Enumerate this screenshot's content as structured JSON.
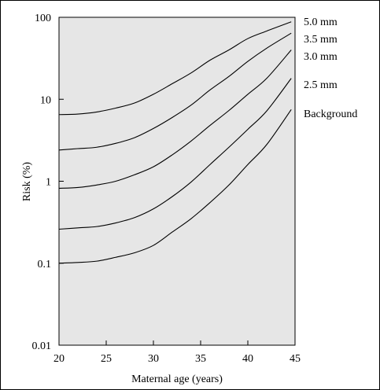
{
  "chart_data": {
    "type": "line",
    "title": "",
    "xlabel": "Maternal age (years)",
    "ylabel": "Risk (%)",
    "xlim": [
      20,
      45
    ],
    "ylim": [
      0.01,
      100
    ],
    "yscale": "log",
    "grid": false,
    "plot_background": "#e6e6e6",
    "line_color": "#000000",
    "x_ticks": [
      {
        "value": 20,
        "label": "20"
      },
      {
        "value": 25,
        "label": "25"
      },
      {
        "value": 30,
        "label": "30"
      },
      {
        "value": 35,
        "label": "35"
      },
      {
        "value": 40,
        "label": "40"
      },
      {
        "value": 45,
        "label": "45"
      }
    ],
    "y_ticks": [
      {
        "value": 0.01,
        "label": "0.01"
      },
      {
        "value": 0.1,
        "label": "0.1"
      },
      {
        "value": 1,
        "label": "1"
      },
      {
        "value": 10,
        "label": "10"
      },
      {
        "value": 100,
        "label": "100"
      }
    ],
    "x": [
      20,
      22,
      24,
      26,
      28,
      30,
      32,
      34,
      36,
      38,
      40,
      42,
      44.6
    ],
    "series": [
      {
        "name": "5.0 mm",
        "values": [
          6.5,
          6.6,
          7.0,
          7.8,
          9.0,
          11.5,
          15.5,
          21,
          30,
          40,
          55,
          68,
          88
        ]
      },
      {
        "name": "3.5 mm",
        "values": [
          2.4,
          2.5,
          2.6,
          2.9,
          3.4,
          4.4,
          6.0,
          8.5,
          13,
          19,
          29,
          42,
          64
        ]
      },
      {
        "name": "3.0 mm",
        "values": [
          0.82,
          0.84,
          0.9,
          1.0,
          1.2,
          1.5,
          2.1,
          3.1,
          4.8,
          7.3,
          11.5,
          18,
          40
        ]
      },
      {
        "name": "2.5 mm",
        "values": [
          0.26,
          0.27,
          0.28,
          0.31,
          0.36,
          0.46,
          0.65,
          0.98,
          1.6,
          2.6,
          4.3,
          7.2,
          18
        ]
      },
      {
        "name": "Background",
        "values": [
          0.1,
          0.102,
          0.106,
          0.118,
          0.134,
          0.165,
          0.24,
          0.35,
          0.55,
          0.9,
          1.6,
          2.8,
          7.5
        ]
      }
    ]
  }
}
